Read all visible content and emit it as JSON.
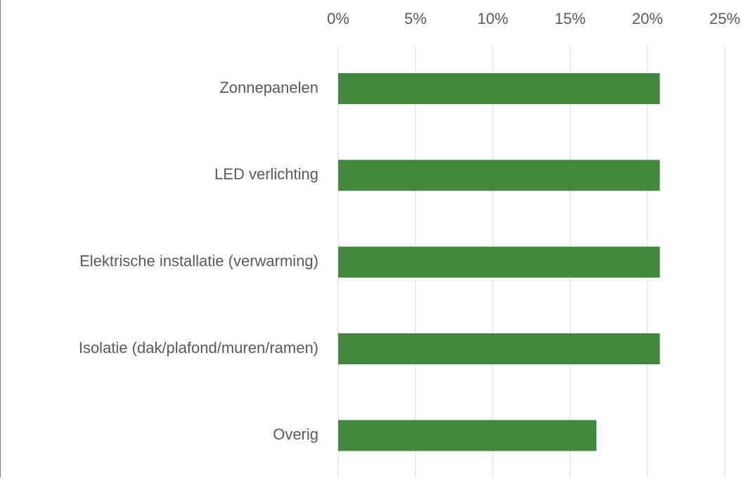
{
  "chart_data": {
    "type": "barh",
    "categories": [
      "Zonnepanelen",
      "LED verlichting",
      "Elektrische installatie (verwarming)",
      "Isolatie (dak/plafond/muren/ramen)",
      "Overig"
    ],
    "values": [
      20.8,
      20.8,
      20.8,
      20.8,
      16.7
    ],
    "color": "#43873f",
    "xlim": [
      0,
      25
    ],
    "xticks": [
      {
        "value": 0,
        "label": "0%"
      },
      {
        "value": 5,
        "label": "5%"
      },
      {
        "value": 10,
        "label": "10%"
      },
      {
        "value": 15,
        "label": "15%"
      },
      {
        "value": 20,
        "label": "20%"
      },
      {
        "value": 25,
        "label": "25%"
      }
    ],
    "grid": true
  }
}
